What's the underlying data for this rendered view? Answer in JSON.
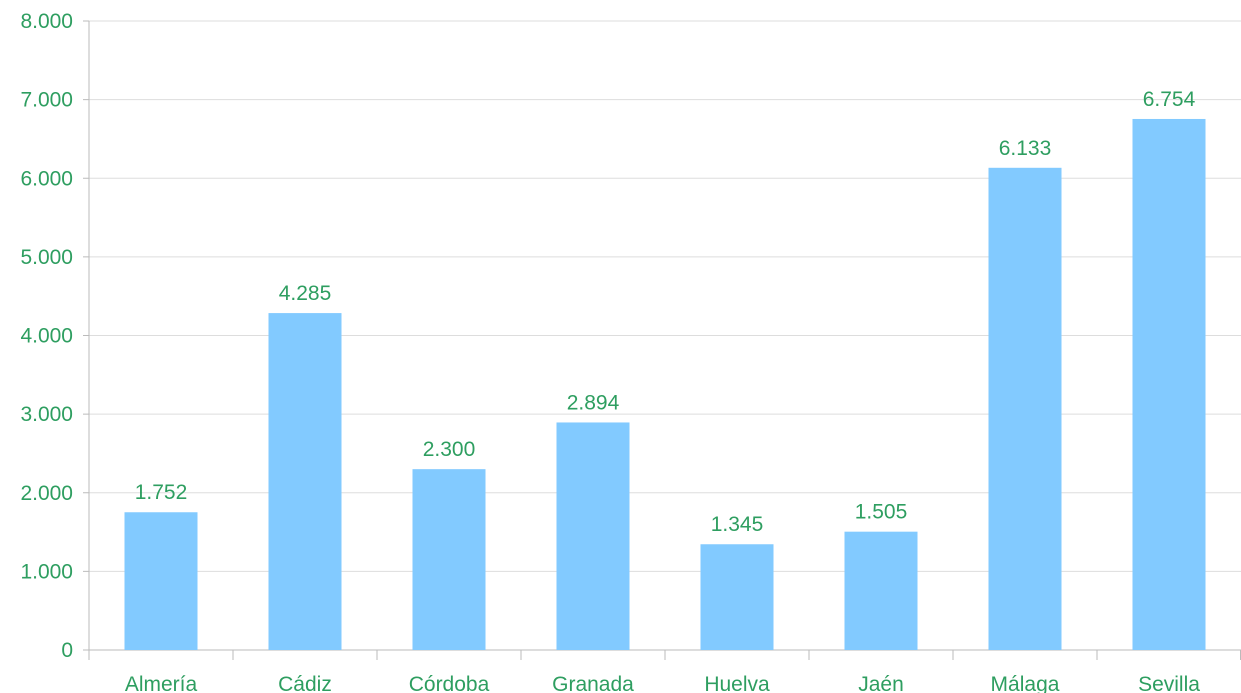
{
  "chart_data": {
    "type": "bar",
    "categories": [
      "Almería",
      "Cádiz",
      "Córdoba",
      "Granada",
      "Huelva",
      "Jaén",
      "Málaga",
      "Sevilla"
    ],
    "values": [
      1752,
      4285,
      2300,
      2894,
      1345,
      1505,
      6133,
      6754
    ],
    "data_labels": [
      "1.752",
      "4.285",
      "2.300",
      "2.894",
      "1.345",
      "1.505",
      "6.133",
      "6.754"
    ],
    "yticks": [
      0,
      1000,
      2000,
      3000,
      4000,
      5000,
      6000,
      7000,
      8000
    ],
    "ytick_labels": [
      "0",
      "1.000",
      "2.000",
      "3.000",
      "4.000",
      "5.000",
      "6.000",
      "7.000",
      "8.000"
    ],
    "ylim": [
      0,
      8000
    ],
    "grid": true,
    "legend": "none",
    "title": "",
    "xlabel": "",
    "ylabel": "",
    "colors": {
      "bar": "#82caff",
      "text": "#2e9e60",
      "grid": "#dddddd",
      "axis": "#bbbbbb"
    }
  }
}
